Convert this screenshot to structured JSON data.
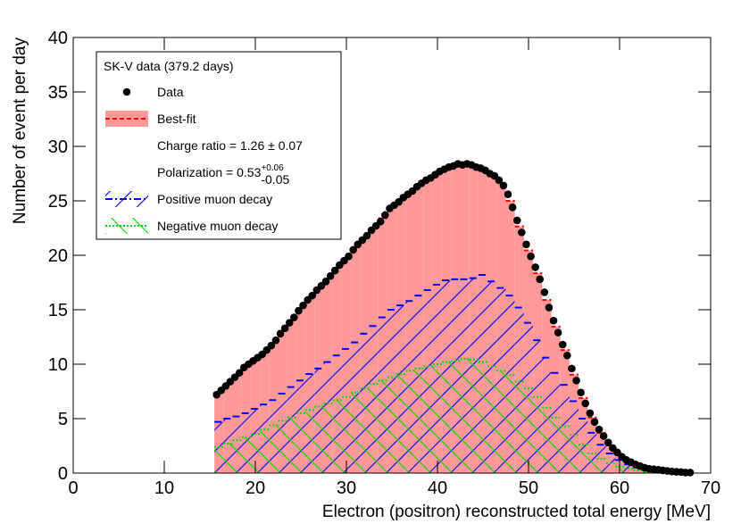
{
  "chart_data": {
    "type": "histogram",
    "xlabel": "Electron (positron) reconstructed total energy [MeV]",
    "ylabel": "Number of event per day",
    "xlim": [
      0,
      70
    ],
    "ylim": [
      0,
      40
    ],
    "xticks": [
      0,
      10,
      20,
      30,
      40,
      50,
      60,
      70
    ],
    "yticks": [
      0,
      5,
      10,
      15,
      20,
      25,
      30,
      35,
      40
    ],
    "legend_title": "SK-V data (379.2 days)",
    "annotations": [
      "Charge ratio = 1.26 ± 0.07",
      {
        "text": "Polarization = 0.53",
        "sup": "+0.06",
        "sub": "-0.05"
      }
    ],
    "bins": [
      15.5,
      16.5,
      17.5,
      18.5,
      19.5,
      20.5,
      21.5,
      22.5,
      23.5,
      24.5,
      25.5,
      26.5,
      27.5,
      28.5,
      29.5,
      30.5,
      31.5,
      32.5,
      33.5,
      34.5,
      35.5,
      36.5,
      37.5,
      38.5,
      39.5,
      40.5,
      41.5,
      42.5,
      43.5,
      44.5,
      45.5,
      46.5,
      47.5,
      48.5,
      49.5,
      50.5,
      51.5,
      52.5,
      53.5,
      54.5,
      55.5,
      56.5,
      57.5,
      58.5,
      59.5,
      60.5,
      61.5,
      62.5,
      63.5,
      64.5,
      65.5,
      66.5,
      67.5
    ],
    "series": [
      {
        "name": "Best-fit",
        "color": "#ff9999",
        "line_color": "#ff0000",
        "values": [
          7.4,
          8.2,
          9.0,
          9.85,
          10.45,
          11.1,
          11.95,
          13.05,
          14.05,
          15.15,
          16.1,
          17.0,
          17.85,
          18.85,
          19.7,
          20.75,
          21.6,
          22.5,
          23.4,
          24.45,
          25.1,
          25.75,
          26.45,
          27.0,
          27.55,
          28.0,
          28.3,
          28.35,
          28.2,
          27.9,
          27.4,
          26.65,
          25.0,
          22.65,
          20.45,
          18.35,
          15.9,
          13.45,
          11.3,
          9.05,
          6.9,
          5.1,
          3.7,
          2.55,
          1.7,
          1.1,
          0.72,
          0.45,
          0.32,
          0.22,
          0.13,
          0.07
        ]
      },
      {
        "name": "Positive muon decay",
        "color": "#0000ff",
        "values": [
          4.7,
          5.0,
          5.2,
          5.5,
          5.9,
          6.3,
          6.7,
          7.3,
          7.9,
          8.5,
          9.1,
          9.6,
          10.2,
          10.8,
          11.4,
          12.0,
          12.8,
          13.5,
          14.3,
          15.0,
          15.4,
          15.8,
          16.3,
          16.8,
          17.3,
          17.7,
          17.8,
          17.8,
          17.9,
          18.2,
          17.6,
          17.0,
          16.3,
          15.2,
          13.8,
          12.2,
          10.6,
          9.2,
          8.1,
          6.6,
          5.0,
          3.7,
          2.6,
          1.8,
          1.2,
          0.8,
          0.5,
          0.32,
          0.22,
          0.14,
          0.08,
          0.04
        ]
      },
      {
        "name": "Negative muon decay",
        "color": "#00dd00",
        "values": [
          2.4,
          2.7,
          3.0,
          3.3,
          3.6,
          4.0,
          4.4,
          4.8,
          5.1,
          5.5,
          5.8,
          6.1,
          6.4,
          6.7,
          7.0,
          7.4,
          7.8,
          8.2,
          8.5,
          8.8,
          9.1,
          9.4,
          9.6,
          9.8,
          10.0,
          10.2,
          10.3,
          10.5,
          10.4,
          10.2,
          9.8,
          9.4,
          9.0,
          8.4,
          7.8,
          7.0,
          6.0,
          5.1,
          4.3,
          3.5,
          2.6,
          1.8,
          1.3,
          0.9,
          0.6,
          0.4,
          0.25,
          0.16,
          0.1,
          0.06,
          0.03,
          0.02
        ]
      }
    ],
    "points": {
      "name": "Data",
      "color": "#000000",
      "x": [
        15.75,
        16.25,
        16.75,
        17.25,
        17.75,
        18.25,
        18.75,
        19.25,
        19.75,
        20.25,
        20.75,
        21.25,
        21.75,
        22.25,
        22.75,
        23.25,
        23.75,
        24.25,
        24.75,
        25.25,
        25.75,
        26.25,
        26.75,
        27.25,
        27.75,
        28.25,
        28.75,
        29.25,
        29.75,
        30.25,
        30.75,
        31.25,
        31.75,
        32.25,
        32.75,
        33.25,
        33.75,
        34.25,
        34.75,
        35.25,
        35.75,
        36.25,
        36.75,
        37.25,
        37.75,
        38.25,
        38.75,
        39.25,
        39.75,
        40.25,
        40.75,
        41.25,
        41.75,
        42.25,
        42.75,
        43.25,
        43.75,
        44.25,
        44.75,
        45.25,
        45.75,
        46.25,
        46.75,
        47.25,
        47.75,
        48.25,
        48.75,
        49.25,
        49.75,
        50.25,
        50.75,
        51.25,
        51.75,
        52.25,
        52.75,
        53.25,
        53.75,
        54.25,
        54.75,
        55.25,
        55.75,
        56.25,
        56.75,
        57.25,
        57.75,
        58.25,
        58.75,
        59.25,
        59.75,
        60.25,
        60.75,
        61.25,
        61.75,
        62.25,
        62.75,
        63.25,
        63.75,
        64.25,
        64.75,
        65.25,
        65.75,
        66.25,
        66.75,
        67.25,
        67.75
      ],
      "values": [
        7.2,
        7.6,
        8.0,
        8.4,
        8.8,
        9.2,
        9.7,
        10.0,
        10.3,
        10.6,
        10.9,
        11.3,
        11.7,
        12.2,
        12.8,
        13.3,
        13.8,
        14.3,
        14.9,
        15.4,
        15.9,
        16.3,
        16.8,
        17.2,
        17.6,
        18.1,
        18.6,
        19.1,
        19.5,
        19.9,
        20.5,
        21.0,
        21.4,
        21.8,
        22.3,
        22.7,
        23.1,
        23.7,
        24.3,
        24.6,
        24.9,
        25.3,
        25.6,
        25.9,
        26.3,
        26.6,
        26.9,
        27.1,
        27.4,
        27.7,
        27.9,
        28.1,
        28.2,
        28.4,
        28.3,
        28.4,
        28.3,
        28.1,
        28.0,
        27.8,
        27.5,
        27.3,
        26.9,
        26.4,
        25.6,
        24.4,
        23.2,
        22.1,
        21.0,
        19.9,
        18.9,
        17.8,
        16.6,
        15.2,
        14.0,
        12.9,
        11.8,
        10.8,
        9.6,
        8.5,
        7.4,
        6.4,
        5.5,
        4.7,
        4.0,
        3.4,
        2.8,
        2.3,
        1.9,
        1.5,
        1.2,
        1.0,
        0.8,
        0.65,
        0.5,
        0.4,
        0.35,
        0.3,
        0.25,
        0.2,
        0.15,
        0.12,
        0.1,
        0.05,
        0.05
      ]
    }
  }
}
